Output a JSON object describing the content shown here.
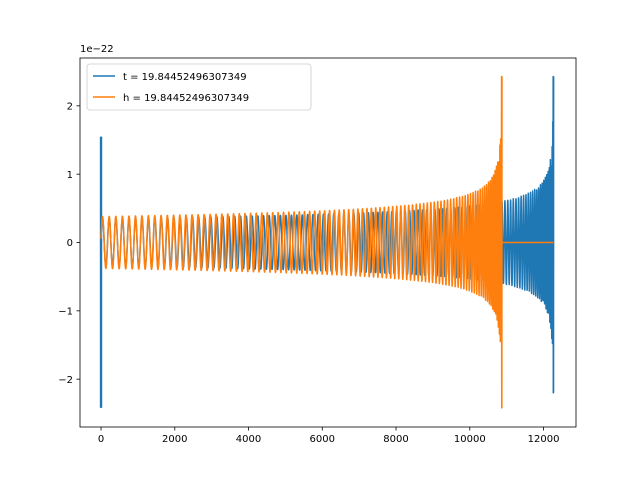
{
  "chart_data": {
    "type": "line",
    "title": "",
    "xlabel": "",
    "ylabel": "",
    "offset_text": "1e−22",
    "xlim": [
      -570,
      12880
    ],
    "ylim": [
      -2.7,
      2.7
    ],
    "x_ticks": [
      0,
      2000,
      4000,
      6000,
      8000,
      10000,
      12000
    ],
    "x_tick_labels": [
      "0",
      "2000",
      "4000",
      "6000",
      "8000",
      "10000",
      "12000"
    ],
    "y_ticks": [
      -2,
      -1,
      0,
      1,
      2
    ],
    "y_tick_labels": [
      "−2",
      "−1",
      "0",
      "1",
      "2"
    ],
    "grid": false,
    "legend_position": "upper-left",
    "series": [
      {
        "name": "t = 19.84452496307349",
        "color": "#1f77b4",
        "x_start": 0,
        "x_end": 12270,
        "shape": "inspiral-oscillation",
        "envelope_start": 0.35,
        "envelope_peak": 2.43,
        "envelope_peak_negative": -2.2,
        "initial_spike": [
          1.55,
          -2.42
        ],
        "post_merger_value": 0
      },
      {
        "name": "h = 19.84452496307349",
        "color": "#ff7f0e",
        "x_start": 0,
        "x_end": 10870,
        "shape": "inspiral-oscillation",
        "envelope_start": 0.38,
        "envelope_peak": 2.43,
        "envelope_peak_negative": -2.42,
        "post_merger_value": 0,
        "post_merger_x_end": 12270
      }
    ]
  }
}
